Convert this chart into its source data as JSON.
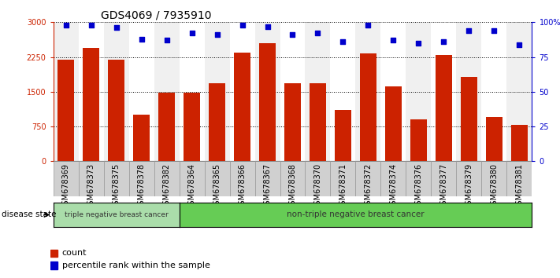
{
  "title": "GDS4069 / 7935910",
  "categories": [
    "GSM678369",
    "GSM678373",
    "GSM678375",
    "GSM678378",
    "GSM678382",
    "GSM678364",
    "GSM678365",
    "GSM678366",
    "GSM678367",
    "GSM678368",
    "GSM678370",
    "GSM678371",
    "GSM678372",
    "GSM678374",
    "GSM678376",
    "GSM678377",
    "GSM678379",
    "GSM678380",
    "GSM678381"
  ],
  "bar_values": [
    2200,
    2450,
    2200,
    1000,
    1480,
    1480,
    1680,
    2350,
    2550,
    1680,
    1680,
    1100,
    2320,
    1620,
    900,
    2300,
    1820,
    950,
    780
  ],
  "dot_values": [
    98,
    98,
    96,
    88,
    87,
    92,
    91,
    98,
    97,
    91,
    92,
    86,
    98,
    87,
    85,
    86,
    94,
    94,
    84
  ],
  "bar_color": "#cc2200",
  "dot_color": "#0000cc",
  "ylim_left": [
    0,
    3000
  ],
  "ylim_right": [
    0,
    100
  ],
  "yticks_left": [
    0,
    750,
    1500,
    2250,
    3000
  ],
  "ytick_labels_left": [
    "0",
    "750",
    "1500",
    "2250",
    "3000"
  ],
  "yticks_right": [
    0,
    25,
    50,
    75,
    100
  ],
  "ytick_labels_right": [
    "0",
    "25",
    "50",
    "75",
    "100%"
  ],
  "group1_label": "triple negative breast cancer",
  "group2_label": "non-triple negative breast cancer",
  "group1_count": 5,
  "group2_count": 14,
  "disease_state_label": "disease state",
  "legend_count_label": "count",
  "legend_percentile_label": "percentile rank within the sample",
  "left_axis_color": "#cc2200",
  "right_axis_color": "#0000cc",
  "bar_width": 0.65,
  "title_fontsize": 10,
  "tick_fontsize": 7,
  "label_fontsize": 7.5,
  "group1_color": "#aaddaa",
  "group2_color": "#66cc55",
  "col_sep_color": "#bbbbbb",
  "plot_bg_color": "#f0f0f0"
}
